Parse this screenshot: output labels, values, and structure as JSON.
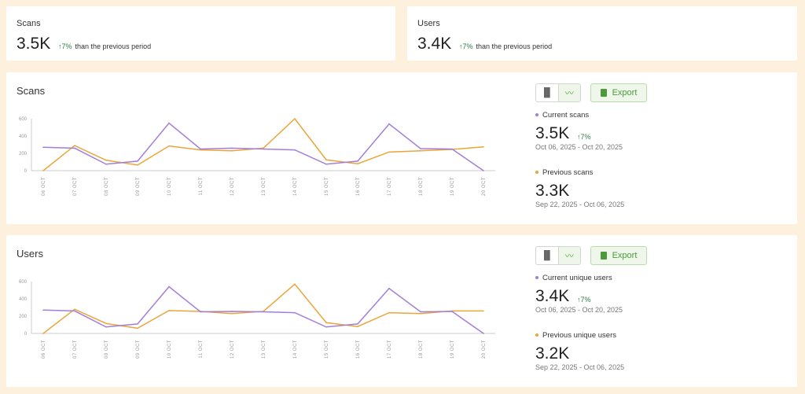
{
  "kpis": [
    {
      "title": "Scans",
      "value": "3.5K",
      "delta": "↑7%",
      "delta_text": "than the previous period"
    },
    {
      "title": "Users",
      "value": "3.4K",
      "delta": "↑7%",
      "delta_text": "than the previous period"
    }
  ],
  "colors": {
    "current": "#a27fd6",
    "previous": "#eaa53c",
    "accent": "#4c9a3a",
    "background": "#fdf0dd"
  },
  "toolbar": {
    "bar_icon": "bar-chart-icon",
    "line_icon": "line-chart-icon",
    "export_label": "Export"
  },
  "sections": [
    {
      "title": "Scans",
      "current": {
        "label": "Current scans",
        "value": "3.5K",
        "delta": "↑7%",
        "range": "Oct 06, 2025 - Oct 20, 2025"
      },
      "previous": {
        "label": "Previous scans",
        "value": "3.3K",
        "range": "Sep 22, 2025 - Oct 06, 2025"
      }
    },
    {
      "title": "Users",
      "current": {
        "label": "Current unique users",
        "value": "3.4K",
        "delta": "↑7%",
        "range": "Oct 06, 2025 - Oct 20, 2025"
      },
      "previous": {
        "label": "Previous unique users",
        "value": "3.2K",
        "range": "Sep 22, 2025 - Oct 06, 2025"
      }
    }
  ],
  "chart_data": [
    {
      "type": "line",
      "categories": [
        "06 OCT",
        "07 OCT",
        "08 OCT",
        "09 OCT",
        "10 OCT",
        "11 OCT",
        "12 OCT",
        "13 OCT",
        "14 OCT",
        "15 OCT",
        "16 OCT",
        "17 OCT",
        "18 OCT",
        "19 OCT",
        "20 OCT"
      ],
      "yticks": [
        0,
        200,
        400,
        600
      ],
      "ylim": [
        0,
        600
      ],
      "series": [
        {
          "values": [
            270,
            260,
            75,
            110,
            550,
            250,
            260,
            250,
            240,
            75,
            110,
            540,
            255,
            250,
            0
          ]
        },
        {
          "values": [
            0,
            290,
            120,
            65,
            285,
            240,
            230,
            260,
            600,
            125,
            80,
            215,
            230,
            245,
            275
          ]
        }
      ]
    },
    {
      "type": "line",
      "categories": [
        "06 OCT",
        "07 OCT",
        "08 OCT",
        "09 OCT",
        "10 OCT",
        "11 OCT",
        "12 OCT",
        "13 OCT",
        "14 OCT",
        "15 OCT",
        "16 OCT",
        "17 OCT",
        "18 OCT",
        "19 OCT",
        "20 OCT"
      ],
      "yticks": [
        0,
        200,
        400,
        600
      ],
      "ylim": [
        0,
        600
      ],
      "series": [
        {
          "values": [
            270,
            260,
            75,
            110,
            540,
            250,
            255,
            250,
            240,
            75,
            110,
            520,
            250,
            255,
            0
          ]
        },
        {
          "values": [
            0,
            280,
            115,
            60,
            265,
            255,
            230,
            255,
            570,
            125,
            80,
            240,
            230,
            260,
            260
          ]
        }
      ]
    }
  ]
}
